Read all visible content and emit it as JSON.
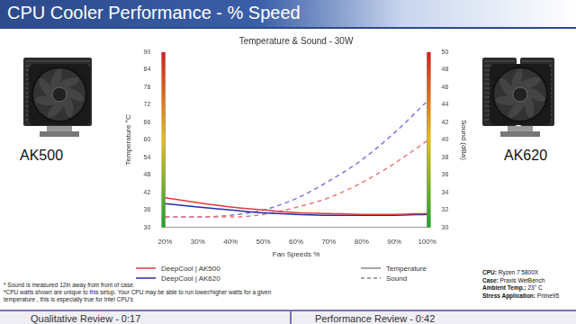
{
  "header": {
    "title": "CPU Cooler Performance - % Speed"
  },
  "products": [
    "AK500",
    "AK620"
  ],
  "chart_data": {
    "type": "line",
    "title": "Temperature & Sound - 30W",
    "x_label": "Fan Speeds %",
    "y_label": "Temperature °C",
    "y2_label": "Sound (dBa)",
    "categories": [
      "20%",
      "30%",
      "40%",
      "50%",
      "60%",
      "70%",
      "80%",
      "90%",
      "100%"
    ],
    "ylim": [
      30,
      90
    ],
    "yticks": [
      30,
      36,
      42,
      48,
      54,
      60,
      66,
      72,
      78,
      84,
      90
    ],
    "y2lim": [
      30,
      50
    ],
    "y2ticks": [
      30,
      32,
      34,
      36,
      38,
      40,
      42,
      44,
      46,
      48,
      50
    ],
    "grid": false,
    "legend": "bottom",
    "legend_styles": [
      {
        "name": "Temperature",
        "line_style": "solid"
      },
      {
        "name": "Sound",
        "line_style": "dashed"
      }
    ],
    "series": [
      {
        "name": "DeepCool | AK500",
        "color": "#e0393e",
        "line_style": "solid",
        "values": [
          40.2,
          38.5,
          37.0,
          36.0,
          35.1,
          34.8,
          34.5,
          34.5,
          34.8
        ]
      },
      {
        "name": "DeepCool | AK620",
        "color": "#2a2aa8",
        "line_style": "solid",
        "values": [
          38.2,
          37.0,
          36.0,
          35.0,
          34.5,
          34.2,
          34.2,
          34.2,
          34.5
        ]
      },
      {
        "name": "DeepCool | AK500",
        "color": "#ee7a7a",
        "line_style": "dashed",
        "axis": "y2",
        "values": [
          31.2,
          31.2,
          31.2,
          31.5,
          32.3,
          33.4,
          35.1,
          37.3,
          39.9
        ]
      },
      {
        "name": "DeepCool | AK620",
        "color": "#7a7ae0",
        "line_style": "dashed",
        "axis": "y2",
        "values": [
          31.2,
          31.2,
          31.4,
          32.0,
          33.3,
          35.3,
          37.7,
          40.8,
          44.4
        ]
      }
    ]
  },
  "footnotes": [
    "* Sound is measured 12in away from front of case.",
    "*CPU watts shown are unique to this setup. Your CPU may be able to run lower/higher watts for a given temperature , this is especially true for Intel CPU's"
  ],
  "test_setup": [
    {
      "label": "CPU:",
      "value": "Ryzen 7 5800X"
    },
    {
      "label": "Case:",
      "value": "Praxis WetBench"
    },
    {
      "label": "Ambient Temp.:",
      "value": "23° C"
    },
    {
      "label": "Stress Application:",
      "value": "Prime95"
    }
  ],
  "footer": {
    "left": "Qualitative Review - 0:17",
    "right": "Performance Review - 0:42"
  }
}
